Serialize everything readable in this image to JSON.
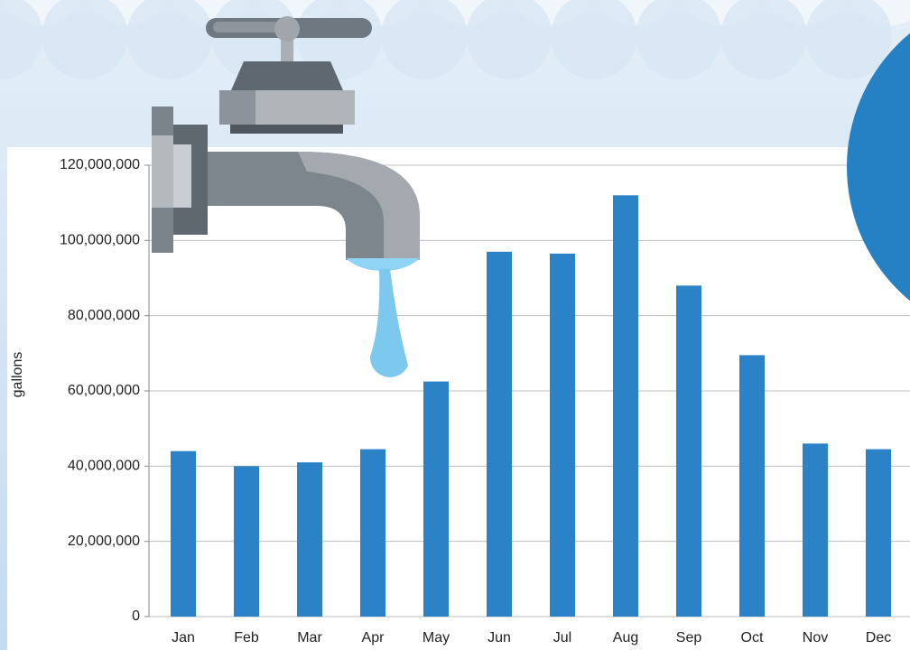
{
  "chart_data": {
    "type": "bar",
    "y_label": "gallons",
    "categories": [
      "Jan",
      "Feb",
      "Mar",
      "Apr",
      "May",
      "Jun",
      "Jul",
      "Aug",
      "Sep",
      "Oct",
      "Nov",
      "Dec"
    ],
    "values": [
      44000000,
      40000000,
      41000000,
      44500000,
      62500000,
      97000000,
      96500000,
      112000000,
      88000000,
      69500000,
      46000000,
      44500000
    ],
    "color": "#2b82c6",
    "ylim": [
      0,
      120000000
    ],
    "yticks": [
      0,
      {
        "value": 20000000,
        "label": "20,000,000"
      },
      {
        "value": 40000000,
        "label": "40,000,000"
      },
      {
        "value": 60000000,
        "label": "60,000,000"
      },
      {
        "value": 80000000,
        "label": "80,000,000"
      },
      {
        "value": 100000000,
        "label": "100,000,000"
      },
      {
        "value": 120000000,
        "label": "120,000,000"
      }
    ],
    "grid": true
  }
}
